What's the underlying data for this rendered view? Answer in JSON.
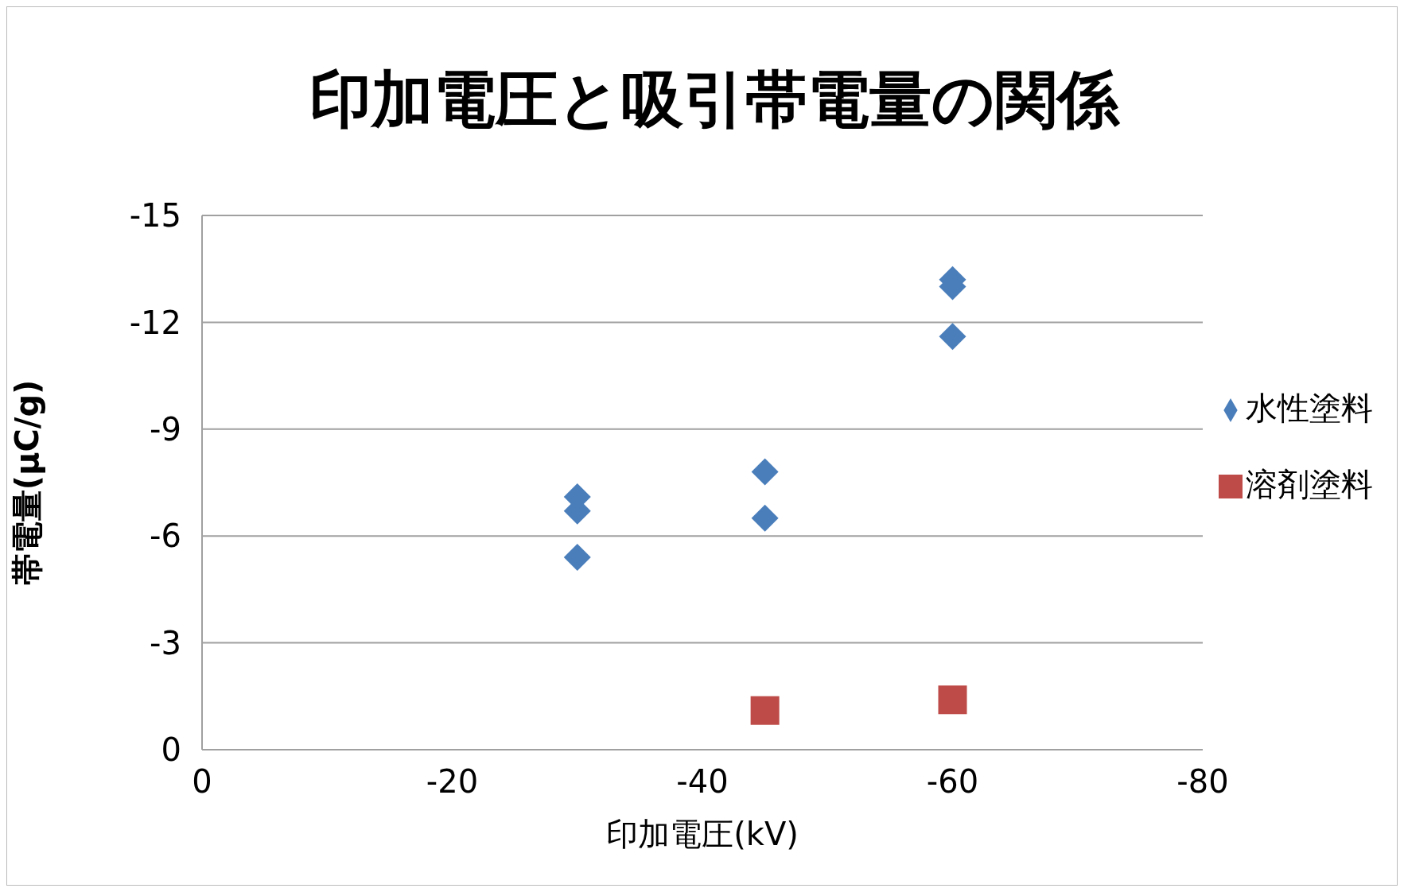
{
  "chart_data": {
    "type": "scatter",
    "title": "印加電圧と吸引帯電量の関係",
    "xlabel": "印加電圧(kV)",
    "ylabel": "帯電量(μC/g)",
    "xlim": [
      0,
      -80
    ],
    "xticks": [
      0,
      -20,
      -40,
      -60,
      -80
    ],
    "ylim": [
      0,
      -15
    ],
    "yticks": [
      0,
      -3,
      -6,
      -9,
      -12,
      -15
    ],
    "grid": "y",
    "legend": "right",
    "series": [
      {
        "name": "水性塗料",
        "color": "#4a7ebb",
        "marker": "diamond",
        "x": [
          -30,
          -30,
          -30,
          -45,
          -45,
          -60,
          -60,
          -60
        ],
        "values": [
          -7.1,
          -6.7,
          -5.4,
          -7.8,
          -6.5,
          -13.2,
          -13.0,
          -11.6
        ]
      },
      {
        "name": "溶剤塗料",
        "color": "#be4b48",
        "marker": "square",
        "x": [
          -45,
          -60
        ],
        "values": [
          -1.1,
          -1.4
        ]
      }
    ]
  }
}
